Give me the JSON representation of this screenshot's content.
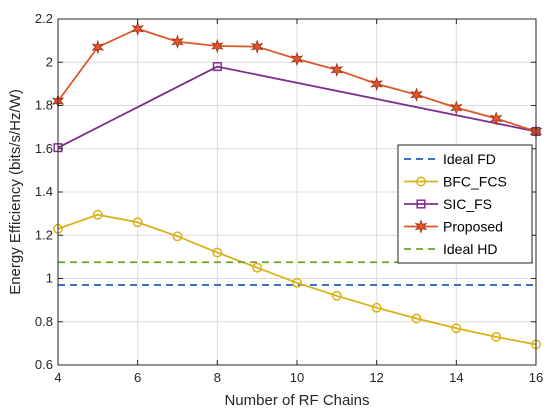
{
  "chart_data": {
    "type": "line",
    "xlabel": "Number of RF Chains",
    "ylabel": "Energy Efficiency (bits/s/Hz/W)",
    "xlim": [
      4,
      16
    ],
    "ylim": [
      0.6,
      2.2
    ],
    "xticks": [
      4,
      6,
      8,
      10,
      12,
      14,
      16
    ],
    "yticks": [
      0.6,
      0.8,
      1,
      1.2,
      1.4,
      1.6,
      1.8,
      2,
      2.2
    ],
    "ytick_labels": [
      "0.6",
      "0.8",
      "1",
      "1.2",
      "1.4",
      "1.6",
      "1.8",
      "2",
      "2.2"
    ],
    "grid": true,
    "legend_position": "right",
    "series": [
      {
        "name": "Ideal FD",
        "color": "#1f5fbf",
        "line_style": "dashed",
        "marker": "none",
        "x": [
          4,
          16
        ],
        "y": [
          0.97,
          0.97
        ]
      },
      {
        "name": "BFC_FCS",
        "color": "#d9b21a",
        "line_style": "solid",
        "marker": "circle",
        "x": [
          4,
          5,
          6,
          7,
          8,
          9,
          10,
          11,
          12,
          13,
          14,
          15,
          16
        ],
        "y": [
          1.23,
          1.295,
          1.26,
          1.195,
          1.12,
          1.05,
          0.98,
          0.92,
          0.865,
          0.815,
          0.77,
          0.73,
          0.695
        ]
      },
      {
        "name": "SIC_FS",
        "color": "#7e2f8e",
        "line_style": "solid",
        "marker": "square",
        "x": [
          4,
          8,
          16
        ],
        "y": [
          1.605,
          1.98,
          1.68
        ]
      },
      {
        "name": "Proposed",
        "color": "#e0562a",
        "line_style": "solid",
        "marker": "hexagram",
        "x": [
          4,
          5,
          6,
          7,
          8,
          9,
          10,
          11,
          12,
          13,
          14,
          15,
          16
        ],
        "y": [
          1.82,
          2.07,
          2.155,
          2.095,
          2.075,
          2.072,
          2.015,
          1.965,
          1.9,
          1.85,
          1.79,
          1.74,
          1.68
        ]
      },
      {
        "name": "Ideal HD",
        "color": "#6aa526",
        "line_style": "dashed",
        "marker": "none",
        "x": [
          4,
          16
        ],
        "y": [
          1.075,
          1.075
        ]
      }
    ]
  }
}
